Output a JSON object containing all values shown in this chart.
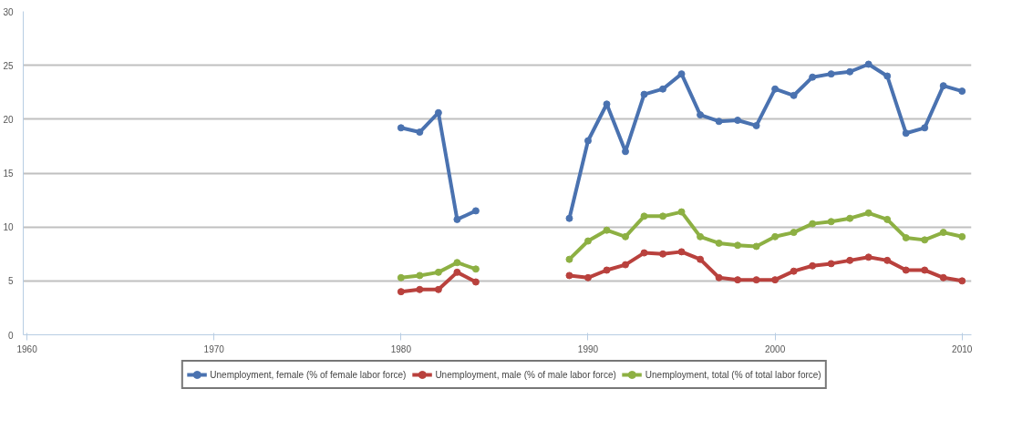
{
  "chart_data": {
    "type": "line",
    "x": [
      1980,
      1981,
      1982,
      1983,
      1984,
      1985,
      1986,
      1987,
      1988,
      1989,
      1990,
      1991,
      1992,
      1993,
      1994,
      1995,
      1996,
      1997,
      1998,
      1999,
      2000,
      2001,
      2002,
      2003,
      2004,
      2005,
      2006,
      2007,
      2008,
      2009,
      2010
    ],
    "series": [
      {
        "name": "Unemployment, female (% of female labor force)",
        "color": "#4a72b0",
        "values": [
          19.2,
          18.8,
          20.6,
          10.7,
          11.5,
          null,
          null,
          null,
          null,
          10.8,
          18.0,
          21.4,
          17.0,
          22.3,
          22.8,
          24.2,
          20.4,
          19.8,
          19.9,
          19.4,
          22.8,
          22.2,
          23.9,
          24.2,
          24.4,
          25.1,
          24.0,
          18.7,
          19.2,
          23.1,
          22.6
        ]
      },
      {
        "name": "Unemployment, male (% of male labor force)",
        "color": "#b9413d",
        "values": [
          4.0,
          4.2,
          4.2,
          5.8,
          4.9,
          null,
          null,
          null,
          null,
          5.5,
          5.3,
          6.0,
          6.5,
          7.6,
          7.5,
          7.7,
          7.0,
          5.3,
          5.1,
          5.1,
          5.1,
          5.9,
          6.4,
          6.6,
          6.9,
          7.2,
          6.9,
          6.0,
          6.0,
          5.3,
          5.0
        ]
      },
      {
        "name": "Unemployment, total (% of total labor force)",
        "color": "#8db043",
        "values": [
          5.3,
          5.5,
          5.8,
          6.7,
          6.1,
          null,
          null,
          null,
          null,
          7.0,
          8.7,
          9.7,
          9.1,
          11.0,
          11.0,
          11.4,
          9.1,
          8.5,
          8.3,
          8.2,
          9.1,
          9.5,
          10.3,
          10.5,
          10.8,
          11.3,
          10.7,
          9.0,
          8.8,
          9.5,
          9.1
        ]
      }
    ],
    "xlim": [
      1959.8,
      2010.5
    ],
    "xticks": [
      1960,
      1970,
      1980,
      1990,
      2000,
      2010
    ],
    "ylim": [
      0,
      30
    ],
    "yticks": [
      0,
      5,
      10,
      15,
      20,
      25,
      30
    ],
    "grid": "y",
    "legend": "bottom",
    "marker": "circle",
    "line_style": "solid"
  }
}
